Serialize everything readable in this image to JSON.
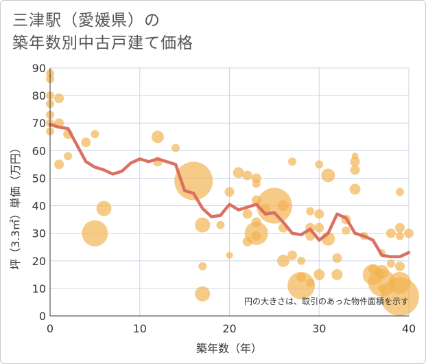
{
  "title": {
    "line1": "三津駅（愛媛県）の",
    "line2": "築年数別中古戸建て価格"
  },
  "note": "円の大きさは、取引のあった物件面積を示す",
  "colors": {
    "bubble": "#f2b24f",
    "line": "#d9695a",
    "grid": "#c9d6e6",
    "axis": "#333333"
  },
  "chart_data": {
    "type": "scatter",
    "xlabel": "築年数（年）",
    "ylabel": "坪（3.3㎡）単価（万円）",
    "xlim": [
      0,
      40
    ],
    "ylim": [
      0,
      90
    ],
    "x_ticks": [
      0,
      10,
      20,
      30,
      40
    ],
    "y_ticks": [
      0,
      10,
      20,
      30,
      40,
      50,
      60,
      70,
      80,
      90
    ],
    "grid": true,
    "legend": "none",
    "points": [
      {
        "x": 0,
        "y": 88,
        "size": 6
      },
      {
        "x": 0,
        "y": 86,
        "size": 6
      },
      {
        "x": 0,
        "y": 80,
        "size": 6
      },
      {
        "x": 0,
        "y": 77,
        "size": 6
      },
      {
        "x": 0,
        "y": 73,
        "size": 6
      },
      {
        "x": 0,
        "y": 70,
        "size": 6
      },
      {
        "x": 0,
        "y": 67,
        "size": 6
      },
      {
        "x": 1,
        "y": 79,
        "size": 7
      },
      {
        "x": 1,
        "y": 70,
        "size": 7
      },
      {
        "x": 1,
        "y": 55,
        "size": 7
      },
      {
        "x": 2,
        "y": 66,
        "size": 7
      },
      {
        "x": 2,
        "y": 58,
        "size": 6
      },
      {
        "x": 4,
        "y": 63,
        "size": 7
      },
      {
        "x": 5,
        "y": 66,
        "size": 6
      },
      {
        "x": 5,
        "y": 30,
        "size": 19
      },
      {
        "x": 6,
        "y": 39,
        "size": 11
      },
      {
        "x": 12,
        "y": 65,
        "size": 9
      },
      {
        "x": 12,
        "y": 56,
        "size": 7
      },
      {
        "x": 14,
        "y": 61,
        "size": 6
      },
      {
        "x": 16,
        "y": 49,
        "size": 28
      },
      {
        "x": 17,
        "y": 33,
        "size": 11
      },
      {
        "x": 17,
        "y": 18,
        "size": 6
      },
      {
        "x": 17,
        "y": 8,
        "size": 11
      },
      {
        "x": 19,
        "y": 33,
        "size": 6
      },
      {
        "x": 20,
        "y": 45,
        "size": 7
      },
      {
        "x": 20,
        "y": 22,
        "size": 5
      },
      {
        "x": 21,
        "y": 52,
        "size": 8
      },
      {
        "x": 22,
        "y": 51,
        "size": 7
      },
      {
        "x": 22,
        "y": 37,
        "size": 7
      },
      {
        "x": 22,
        "y": 27,
        "size": 7
      },
      {
        "x": 23,
        "y": 50,
        "size": 7
      },
      {
        "x": 23,
        "y": 48,
        "size": 6
      },
      {
        "x": 23,
        "y": 42,
        "size": 7
      },
      {
        "x": 23,
        "y": 34,
        "size": 7
      },
      {
        "x": 23,
        "y": 30,
        "size": 17
      },
      {
        "x": 23,
        "y": 29,
        "size": 7
      },
      {
        "x": 24,
        "y": 39,
        "size": 7
      },
      {
        "x": 25,
        "y": 40,
        "size": 26
      },
      {
        "x": 26,
        "y": 40,
        "size": 8
      },
      {
        "x": 26,
        "y": 32,
        "size": 7
      },
      {
        "x": 26,
        "y": 20,
        "size": 9
      },
      {
        "x": 27,
        "y": 56,
        "size": 6
      },
      {
        "x": 27,
        "y": 22,
        "size": 7
      },
      {
        "x": 28,
        "y": 20,
        "size": 6
      },
      {
        "x": 28,
        "y": 14,
        "size": 7
      },
      {
        "x": 28,
        "y": 11,
        "size": 20
      },
      {
        "x": 29,
        "y": 38,
        "size": 6
      },
      {
        "x": 29,
        "y": 32,
        "size": 7
      },
      {
        "x": 29,
        "y": 29,
        "size": 7
      },
      {
        "x": 29,
        "y": 12,
        "size": 6
      },
      {
        "x": 30,
        "y": 55,
        "size": 6
      },
      {
        "x": 30,
        "y": 37,
        "size": 7
      },
      {
        "x": 30,
        "y": 32,
        "size": 7
      },
      {
        "x": 30,
        "y": 15,
        "size": 8
      },
      {
        "x": 31,
        "y": 51,
        "size": 10
      },
      {
        "x": 31,
        "y": 28,
        "size": 10
      },
      {
        "x": 32,
        "y": 21,
        "size": 7
      },
      {
        "x": 32,
        "y": 15,
        "size": 8
      },
      {
        "x": 33,
        "y": 35,
        "size": 7
      },
      {
        "x": 33,
        "y": 31,
        "size": 6
      },
      {
        "x": 34,
        "y": 58,
        "size": 5
      },
      {
        "x": 34,
        "y": 56,
        "size": 7
      },
      {
        "x": 34,
        "y": 53,
        "size": 7
      },
      {
        "x": 34,
        "y": 46,
        "size": 8
      },
      {
        "x": 35,
        "y": 29,
        "size": 6
      },
      {
        "x": 36,
        "y": 17,
        "size": 7
      },
      {
        "x": 36,
        "y": 15,
        "size": 15
      },
      {
        "x": 37,
        "y": 16,
        "size": 10
      },
      {
        "x": 37,
        "y": 12,
        "size": 20
      },
      {
        "x": 37,
        "y": 10,
        "size": 6
      },
      {
        "x": 37,
        "y": 23,
        "size": 5
      },
      {
        "x": 38,
        "y": 30,
        "size": 7
      },
      {
        "x": 38,
        "y": 19,
        "size": 6
      },
      {
        "x": 39,
        "y": 45,
        "size": 6
      },
      {
        "x": 39,
        "y": 32,
        "size": 7
      },
      {
        "x": 39,
        "y": 29,
        "size": 6
      },
      {
        "x": 39,
        "y": 18,
        "size": 7
      },
      {
        "x": 39,
        "y": 12,
        "size": 16
      },
      {
        "x": 39,
        "y": 7,
        "size": 28
      },
      {
        "x": 40,
        "y": 30,
        "size": 7
      }
    ],
    "trend": {
      "x": [
        0,
        1,
        2,
        3,
        4,
        5,
        6,
        7,
        8,
        9,
        10,
        11,
        12,
        13,
        14,
        15,
        16,
        17,
        18,
        19,
        20,
        21,
        22,
        23,
        24,
        25,
        26,
        27,
        28,
        29,
        30,
        31,
        32,
        33,
        34,
        35,
        36,
        37,
        38,
        39,
        40
      ],
      "y": [
        69.5,
        68.5,
        68,
        62,
        56,
        54,
        53,
        51.5,
        52.5,
        55.5,
        57,
        56,
        57,
        56,
        55,
        45.5,
        44.5,
        39,
        36,
        36.5,
        40.5,
        38.5,
        39.5,
        40.5,
        37,
        37.5,
        34,
        30,
        29.5,
        31.5,
        27.5,
        30,
        37,
        35.5,
        30,
        29,
        27.5,
        22,
        21.5,
        21.5,
        23
      ]
    }
  }
}
